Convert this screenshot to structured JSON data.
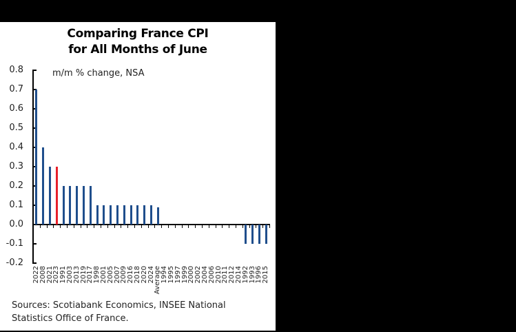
{
  "chart_data": {
    "type": "bar",
    "title": "Comparing France CPI for All Months of June",
    "title_lines": [
      "Comparing France CPI",
      "for All Months of June"
    ],
    "subtitle": "m/m % change, NSA",
    "xlabel": "",
    "ylabel": "m/m % change, NSA",
    "ylim": [
      -0.2,
      0.8
    ],
    "yticks": [
      "0.8",
      "0.7",
      "0.6",
      "0.5",
      "0.4",
      "0.3",
      "0.2",
      "0.1",
      "0.0",
      "-0.1",
      "-0.2"
    ],
    "grid": false,
    "legend": null,
    "highlight": {
      "category": "2023",
      "color": "#e8202a"
    },
    "bar_color": "#1f4e8c",
    "categories": [
      "2022",
      "2008",
      "2021",
      "2023",
      "1991",
      "2003",
      "2013",
      "2019",
      "2017",
      "1998",
      "2001",
      "2005",
      "2007",
      "2009",
      "2016",
      "2018",
      "2020",
      "2024",
      "Average",
      "1994",
      "1995",
      "1997",
      "1999",
      "2000",
      "2002",
      "2004",
      "2006",
      "2010",
      "2011",
      "2012",
      "2014",
      "1992",
      "1993",
      "1996",
      "2015"
    ],
    "values": [
      0.7,
      0.4,
      0.3,
      0.3,
      0.2,
      0.2,
      0.2,
      0.2,
      0.2,
      0.1,
      0.1,
      0.1,
      0.1,
      0.1,
      0.1,
      0.1,
      0.1,
      0.1,
      0.09,
      0.0,
      0.0,
      0.0,
      0.0,
      0.0,
      0.0,
      0.0,
      0.0,
      0.0,
      0.0,
      0.0,
      0.0,
      -0.1,
      -0.1,
      -0.1,
      -0.1
    ]
  },
  "footer": {
    "source_line1": "Sources: Scotiabank Economics, INSEE National",
    "source_line2": "Statistics Office of France."
  }
}
